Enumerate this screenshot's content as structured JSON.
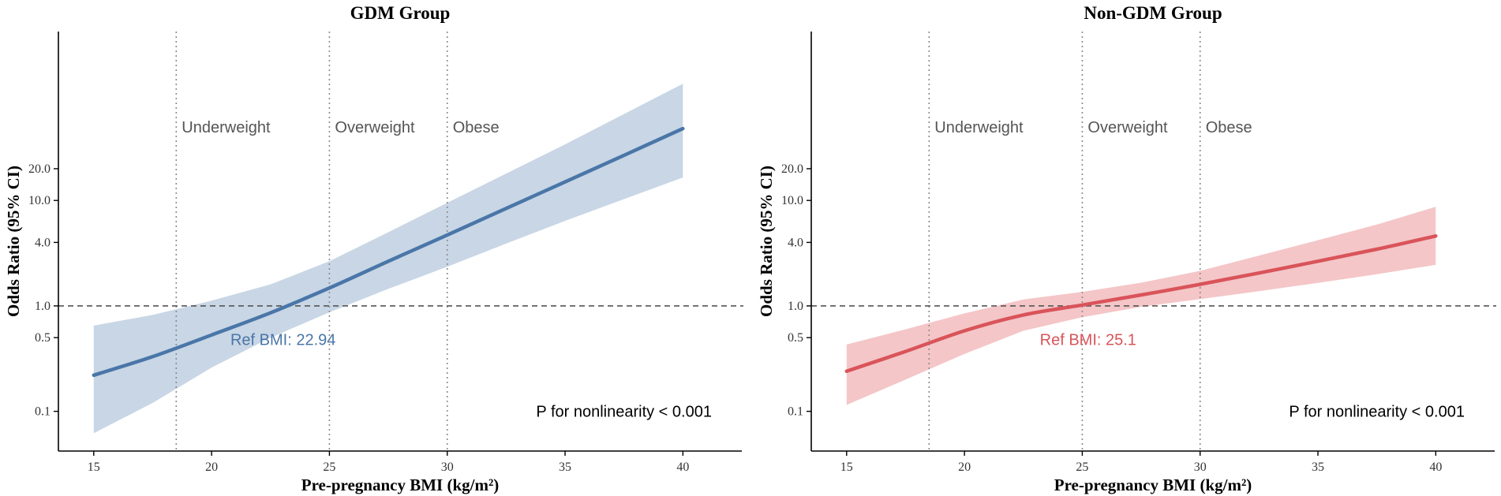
{
  "chart_data": [
    {
      "type": "line",
      "title": "GDM Group",
      "xlabel": "Pre-pregnancy BMI (kg/m²)",
      "ylabel": "Odds Ratio (95% CI)",
      "xlim": [
        13.5,
        42.5
      ],
      "xticks": [
        15,
        20,
        25,
        30,
        35,
        40
      ],
      "y_scale": "log",
      "ylim": [
        0.042,
        400
      ],
      "yticks": [
        0.1,
        0.5,
        1.0,
        4.0,
        10.0,
        20.0
      ],
      "ytick_labels": [
        "0.1",
        "0.5",
        "1.0",
        "4.0",
        "10.0",
        "20.0"
      ],
      "reference_line_y": 1.0,
      "category_lines": [
        {
          "x": 18.5,
          "label": "Underweight"
        },
        {
          "x": 25,
          "label": "Overweight"
        },
        {
          "x": 30,
          "label": "Obese"
        }
      ],
      "category_label_y": 50,
      "ref_label": "Ref BMI: 22.94",
      "ref_label_pos": [
        20.8,
        0.48
      ],
      "p_note": "P for nonlinearity < 0.001",
      "p_note_pos": [
        37.5,
        0.1
      ],
      "color": "#4a76a8",
      "band_color": "#c8d6e5",
      "series": [
        {
          "name": "OR",
          "x": [
            15,
            17.5,
            20,
            22.5,
            25,
            27.5,
            30,
            32.5,
            35,
            37.5,
            40
          ],
          "y": [
            0.22,
            0.33,
            0.53,
            0.86,
            1.48,
            2.65,
            4.7,
            8.4,
            15,
            26.8,
            48
          ],
          "lower": [
            0.062,
            0.12,
            0.26,
            0.5,
            0.87,
            1.45,
            2.35,
            3.9,
            6.4,
            10.3,
            16.5
          ],
          "upper": [
            0.65,
            0.82,
            1.12,
            1.6,
            2.65,
            5.0,
            9.5,
            18,
            34,
            66,
            128
          ]
        }
      ]
    },
    {
      "type": "line",
      "title": "Non-GDM Group",
      "xlabel": "Pre-pregnancy BMI (kg/m²)",
      "ylabel": "Odds Ratio (95% CI)",
      "xlim": [
        13.5,
        42.5
      ],
      "xticks": [
        15,
        20,
        25,
        30,
        35,
        40
      ],
      "y_scale": "log",
      "ylim": [
        0.042,
        400
      ],
      "yticks": [
        0.1,
        0.5,
        1.0,
        4.0,
        10.0,
        20.0
      ],
      "ytick_labels": [
        "0.1",
        "0.5",
        "1.0",
        "4.0",
        "10.0",
        "20.0"
      ],
      "reference_line_y": 1.0,
      "category_lines": [
        {
          "x": 18.5,
          "label": "Underweight"
        },
        {
          "x": 25,
          "label": "Overweight"
        },
        {
          "x": 30,
          "label": "Obese"
        }
      ],
      "category_label_y": 50,
      "ref_label": "Ref BMI: 25.1",
      "ref_label_pos": [
        23.2,
        0.48
      ],
      "p_note": "P for nonlinearity < 0.001",
      "p_note_pos": [
        37.5,
        0.1
      ],
      "color": "#d9545a",
      "band_color": "#f4c6c8",
      "series": [
        {
          "name": "OR",
          "x": [
            15,
            17.5,
            20,
            22.5,
            25,
            27.5,
            30,
            32.5,
            35,
            37.5,
            40
          ],
          "y": [
            0.24,
            0.37,
            0.58,
            0.82,
            1.02,
            1.27,
            1.6,
            2.05,
            2.65,
            3.45,
            4.6
          ],
          "lower": [
            0.115,
            0.2,
            0.35,
            0.58,
            0.78,
            0.98,
            1.16,
            1.38,
            1.65,
            2.0,
            2.45
          ],
          "upper": [
            0.43,
            0.6,
            0.85,
            1.15,
            1.36,
            1.66,
            2.15,
            3.0,
            4.2,
            5.9,
            8.7
          ]
        }
      ]
    }
  ]
}
